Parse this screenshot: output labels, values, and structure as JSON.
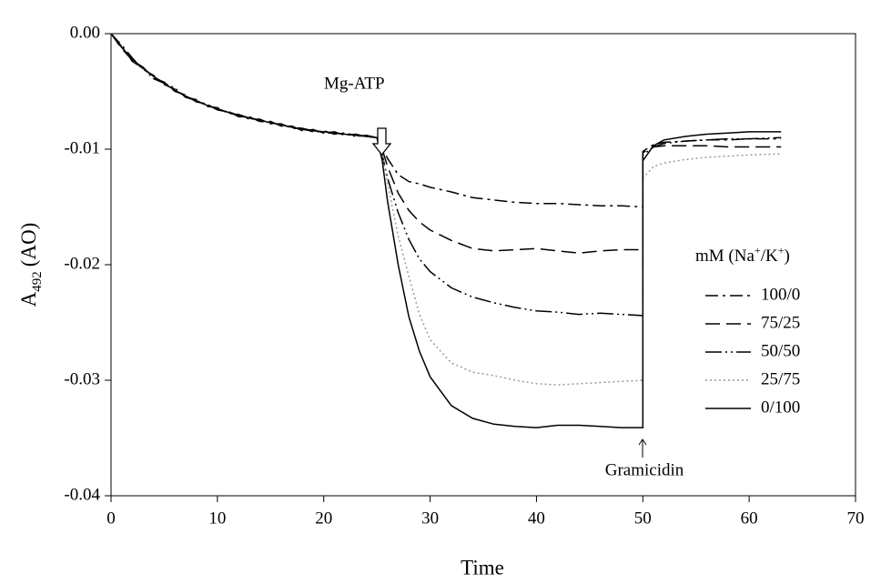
{
  "chart_data": {
    "type": "line",
    "xlabel": "Time",
    "ylabel_parts": [
      {
        "text": "A"
      },
      {
        "text": "492",
        "sub": true
      },
      {
        "text": "(AO)"
      }
    ],
    "legend_title_parts": [
      {
        "text": "mM (Na"
      },
      {
        "text": "+",
        "sup": true
      },
      {
        "text": "/K"
      },
      {
        "text": "+",
        "sup": true
      },
      {
        "text": ")"
      }
    ],
    "annotations": [
      "Mg-ATP",
      "Gramicidin"
    ],
    "xlim": [
      0,
      70
    ],
    "xticks": [
      0,
      10,
      20,
      30,
      40,
      50,
      60,
      70
    ],
    "ylim": [
      -0.04,
      0
    ],
    "yticks": [
      {
        "value": 0,
        "label": "0.00"
      },
      -0.01,
      -0.02,
      -0.03,
      -0.04
    ],
    "x": [
      0,
      1,
      2,
      3,
      4,
      5,
      6,
      7,
      8,
      9,
      10,
      11,
      12,
      13,
      14,
      15,
      16,
      17,
      18,
      19,
      20,
      21,
      22,
      23,
      24,
      25,
      25.5,
      26,
      27,
      28,
      29,
      30,
      32,
      34,
      36,
      38,
      40,
      42,
      44,
      46,
      48,
      50,
      50,
      51,
      52,
      54,
      56,
      58,
      60,
      63
    ],
    "series": [
      {
        "name": "100/0",
        "color": "#000000",
        "dash": "14 5 3 5",
        "values": [
          0,
          -0.001,
          -0.0021,
          -0.0031,
          -0.0036,
          -0.0044,
          -0.0048,
          -0.0055,
          -0.0057,
          -0.0063,
          -0.0064,
          -0.0069,
          -0.007,
          -0.0074,
          -0.0074,
          -0.0078,
          -0.0078,
          -0.0082,
          -0.0082,
          -0.0085,
          -0.0084,
          -0.0087,
          -0.0086,
          -0.0088,
          -0.0089,
          -0.009,
          -0.0098,
          -0.0108,
          -0.0122,
          -0.0128,
          -0.013,
          -0.0133,
          -0.0137,
          -0.0142,
          -0.0144,
          -0.0146,
          -0.0147,
          -0.0147,
          -0.0148,
          -0.0149,
          -0.0149,
          -0.015,
          -0.0102,
          -0.0096,
          -0.0094,
          -0.0093,
          -0.0092,
          -0.0092,
          -0.0091,
          -0.0091
        ]
      },
      {
        "name": "75/25",
        "color": "#000000",
        "dash": "16 7",
        "values": [
          0,
          -0.0013,
          -0.0023,
          -0.0029,
          -0.0038,
          -0.0042,
          -0.005,
          -0.0053,
          -0.0059,
          -0.0061,
          -0.0066,
          -0.0067,
          -0.0072,
          -0.0072,
          -0.0076,
          -0.0076,
          -0.008,
          -0.008,
          -0.0084,
          -0.0083,
          -0.0086,
          -0.0085,
          -0.0088,
          -0.0087,
          -0.0089,
          -0.009,
          -0.01,
          -0.0115,
          -0.0138,
          -0.0153,
          -0.0163,
          -0.017,
          -0.0179,
          -0.0186,
          -0.0188,
          -0.0187,
          -0.0186,
          -0.0188,
          -0.019,
          -0.0188,
          -0.0187,
          -0.0187,
          -0.0103,
          -0.0098,
          -0.0097,
          -0.0097,
          -0.0097,
          -0.0098,
          -0.0098,
          -0.0098
        ]
      },
      {
        "name": "50/50",
        "color": "#000000",
        "dash": "18 4 2 4 2 4",
        "values": [
          0,
          -0.0011,
          -0.0024,
          -0.003,
          -0.0039,
          -0.0043,
          -0.0047,
          -0.0055,
          -0.0058,
          -0.0061,
          -0.0066,
          -0.0068,
          -0.007,
          -0.0073,
          -0.0076,
          -0.0077,
          -0.0079,
          -0.0081,
          -0.0082,
          -0.0084,
          -0.0086,
          -0.0086,
          -0.0087,
          -0.0089,
          -0.0088,
          -0.009,
          -0.0105,
          -0.0125,
          -0.0155,
          -0.0178,
          -0.0195,
          -0.0206,
          -0.022,
          -0.0228,
          -0.0233,
          -0.0237,
          -0.024,
          -0.0241,
          -0.0243,
          -0.0242,
          -0.0243,
          -0.0244,
          -0.0105,
          -0.0098,
          -0.0095,
          -0.0093,
          -0.0092,
          -0.0091,
          -0.0091,
          -0.009
        ]
      },
      {
        "name": "25/75",
        "color": "#9a9a9a",
        "dash": "2 3",
        "values": [
          0,
          -0.0012,
          -0.0022,
          -0.0031,
          -0.0037,
          -0.0043,
          -0.0049,
          -0.0054,
          -0.0058,
          -0.0062,
          -0.0065,
          -0.0068,
          -0.0071,
          -0.0073,
          -0.0075,
          -0.0077,
          -0.0079,
          -0.0081,
          -0.0083,
          -0.0084,
          -0.0085,
          -0.0086,
          -0.0087,
          -0.0088,
          -0.0089,
          -0.009,
          -0.0105,
          -0.013,
          -0.0175,
          -0.021,
          -0.0243,
          -0.0265,
          -0.0285,
          -0.0293,
          -0.0296,
          -0.03,
          -0.0303,
          -0.0304,
          -0.0303,
          -0.0302,
          -0.0301,
          -0.03,
          -0.0125,
          -0.0115,
          -0.0112,
          -0.0109,
          -0.0107,
          -0.0106,
          -0.0105,
          -0.0104
        ]
      },
      {
        "name": "0/100",
        "color": "#000000",
        "dash": "none",
        "values": [
          0,
          -0.0012,
          -0.0022,
          -0.003,
          -0.0037,
          -0.0043,
          -0.0049,
          -0.0054,
          -0.0058,
          -0.0062,
          -0.0065,
          -0.0068,
          -0.0071,
          -0.0073,
          -0.0075,
          -0.0077,
          -0.0079,
          -0.0081,
          -0.0083,
          -0.0084,
          -0.0085,
          -0.0086,
          -0.0087,
          -0.0088,
          -0.0089,
          -0.009,
          -0.011,
          -0.0145,
          -0.02,
          -0.0245,
          -0.0275,
          -0.0297,
          -0.0322,
          -0.0333,
          -0.0338,
          -0.034,
          -0.0341,
          -0.0339,
          -0.0339,
          -0.034,
          -0.0341,
          -0.0341,
          -0.011,
          -0.0097,
          -0.0092,
          -0.0089,
          -0.0087,
          -0.0086,
          -0.0085,
          -0.0085
        ]
      }
    ]
  }
}
